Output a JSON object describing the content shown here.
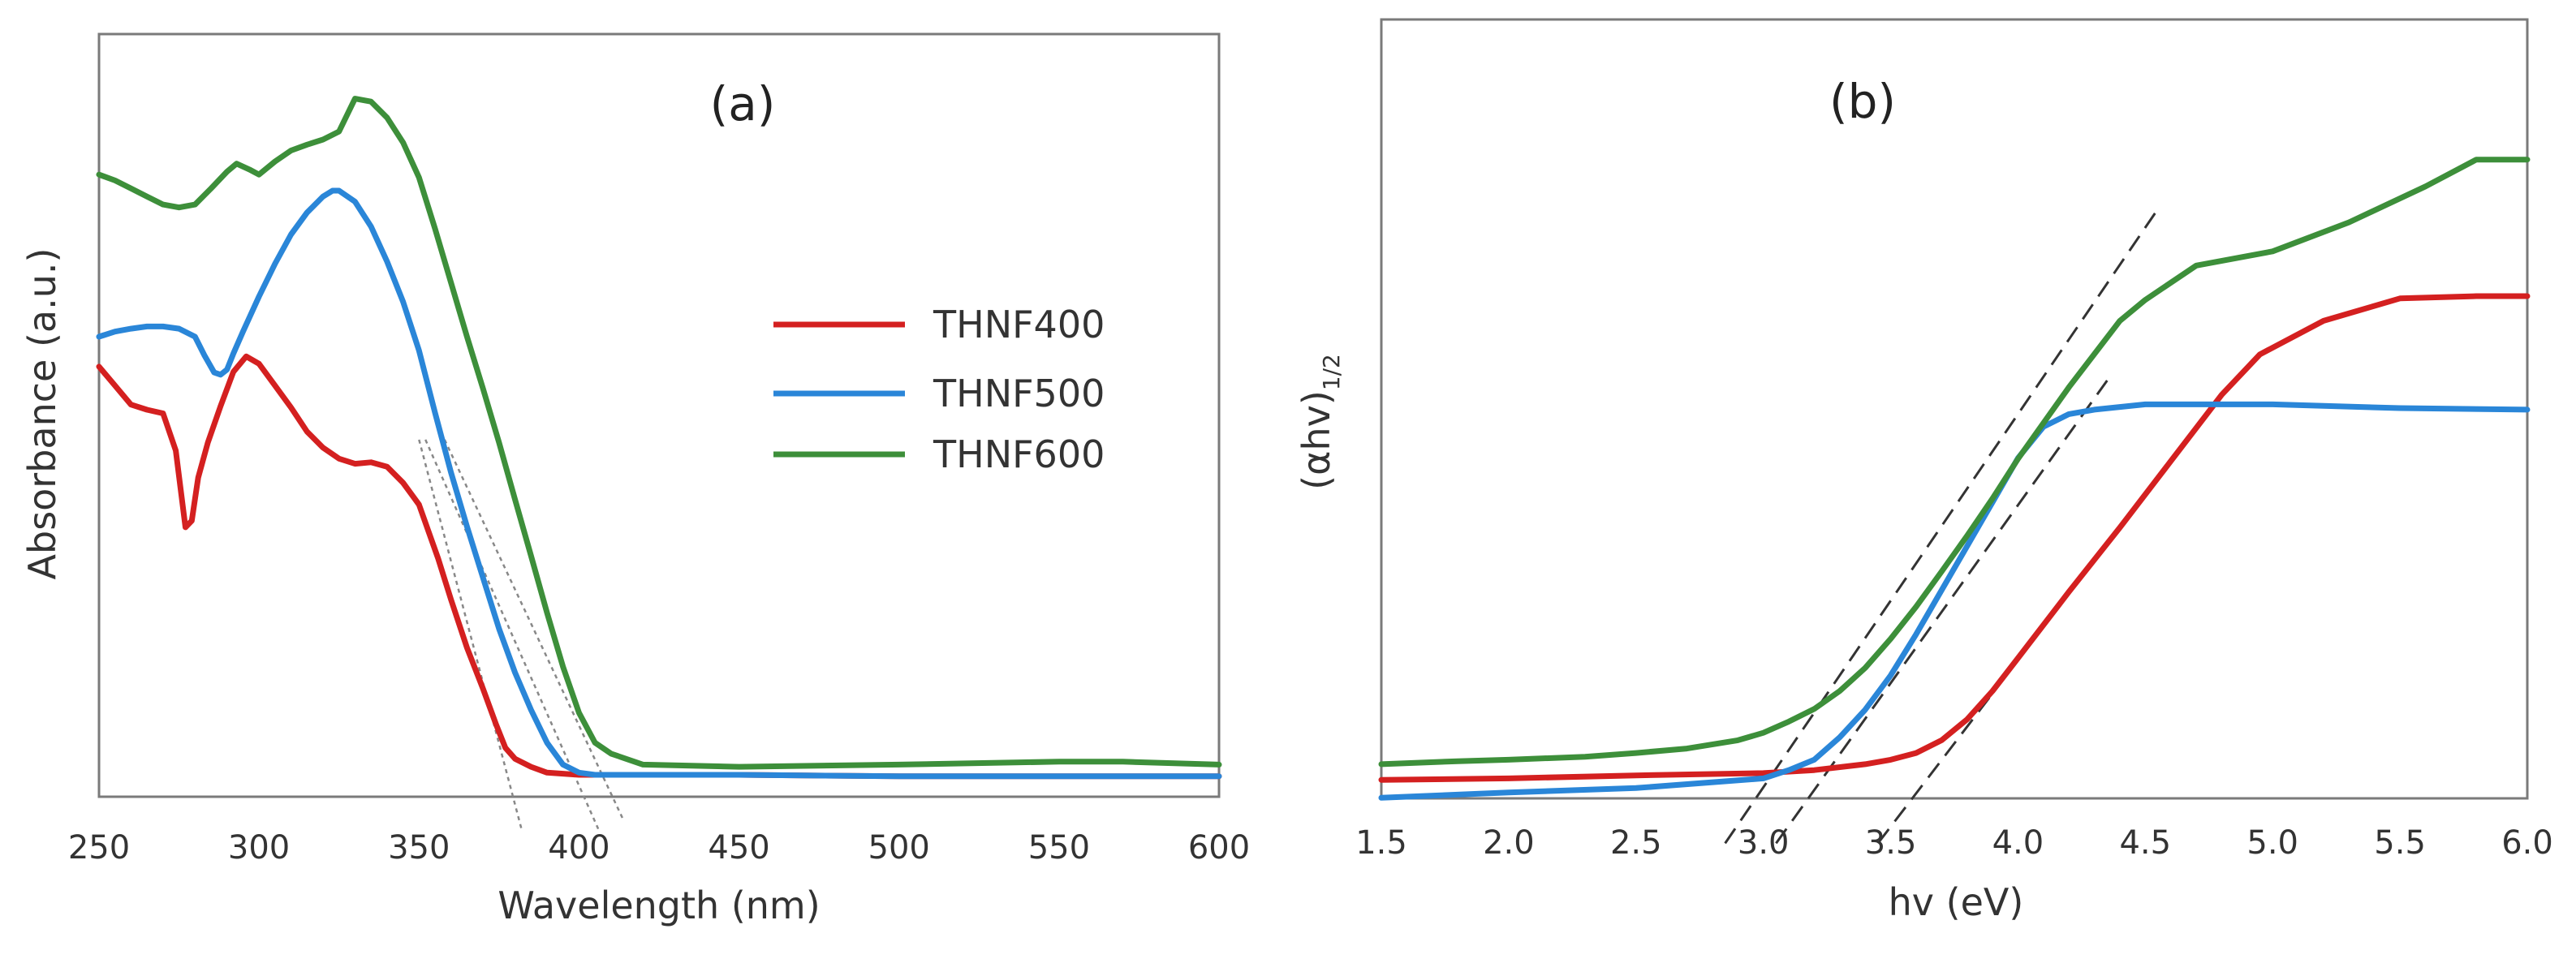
{
  "colors": {
    "THNF400": "#d42020",
    "THNF500": "#2a86d8",
    "THNF600": "#3d8f3a"
  },
  "chart_data": [
    {
      "type": "line",
      "panel_label": "(a)",
      "xlabel": "Wavelength (nm)",
      "ylabel": "Absorbance (a.u.)",
      "xlim": [
        250,
        600
      ],
      "ylim": [
        0,
        1
      ],
      "y_ticks_shown": false,
      "x_ticks": [
        250,
        300,
        350,
        400,
        450,
        500,
        550,
        600
      ],
      "x_tick_labels": [
        "250",
        "300",
        "350",
        "400",
        "450",
        "500",
        "550",
        "600"
      ],
      "legend": {
        "position": "right-center",
        "entries": [
          "THNF400",
          "THNF500",
          "THNF600"
        ]
      },
      "series": [
        {
          "name": "THNF400",
          "color": "#d42020",
          "x": [
            250,
            255,
            260,
            265,
            270,
            274,
            277,
            279,
            281,
            284,
            288,
            292,
            296,
            300,
            305,
            310,
            315,
            320,
            325,
            330,
            335,
            340,
            345,
            350,
            353,
            356,
            360,
            365,
            370,
            374,
            377,
            380,
            385,
            390,
            400,
            410,
            450,
            500,
            550,
            600
          ],
          "y": [
            0.589,
            0.563,
            0.537,
            0.53,
            0.525,
            0.474,
            0.369,
            0.378,
            0.437,
            0.485,
            0.535,
            0.582,
            0.603,
            0.593,
            0.563,
            0.533,
            0.5,
            0.478,
            0.463,
            0.456,
            0.458,
            0.452,
            0.43,
            0.4,
            0.363,
            0.326,
            0.27,
            0.204,
            0.148,
            0.1,
            0.067,
            0.052,
            0.041,
            0.033,
            0.03,
            0.03,
            0.03,
            0.028,
            0.028,
            0.028
          ]
        },
        {
          "name": "THNF500",
          "color": "#2a86d8",
          "x": [
            250,
            255,
            260,
            265,
            270,
            275,
            280,
            283,
            286,
            288,
            290,
            292,
            295,
            300,
            305,
            310,
            315,
            320,
            323,
            325,
            330,
            335,
            340,
            345,
            350,
            355,
            360,
            365,
            370,
            375,
            380,
            385,
            390,
            395,
            400,
            405,
            410,
            420,
            450,
            500,
            550,
            600
          ],
          "y": [
            0.63,
            0.637,
            0.641,
            0.644,
            0.644,
            0.641,
            0.63,
            0.604,
            0.581,
            0.578,
            0.585,
            0.607,
            0.637,
            0.685,
            0.73,
            0.77,
            0.8,
            0.822,
            0.83,
            0.83,
            0.815,
            0.781,
            0.733,
            0.678,
            0.611,
            0.526,
            0.444,
            0.37,
            0.3,
            0.23,
            0.17,
            0.119,
            0.074,
            0.044,
            0.033,
            0.03,
            0.03,
            0.03,
            0.03,
            0.028,
            0.028,
            0.028
          ]
        },
        {
          "name": "THNF600",
          "color": "#3d8f3a",
          "x": [
            250,
            255,
            260,
            265,
            270,
            275,
            280,
            285,
            290,
            293,
            297,
            300,
            305,
            310,
            315,
            320,
            325,
            330,
            335,
            340,
            345,
            350,
            355,
            360,
            365,
            370,
            375,
            380,
            385,
            390,
            395,
            400,
            405,
            410,
            420,
            450,
            500,
            550,
            570,
            600
          ],
          "y": [
            0.852,
            0.844,
            0.833,
            0.822,
            0.811,
            0.807,
            0.811,
            0.833,
            0.856,
            0.867,
            0.859,
            0.852,
            0.87,
            0.885,
            0.893,
            0.9,
            0.911,
            0.956,
            0.952,
            0.93,
            0.896,
            0.848,
            0.778,
            0.704,
            0.63,
            0.559,
            0.485,
            0.407,
            0.33,
            0.252,
            0.178,
            0.115,
            0.074,
            0.059,
            0.044,
            0.041,
            0.044,
            0.048,
            0.048,
            0.044
          ]
        }
      ],
      "fit_lines": [
        {
          "x": [
            350,
            382
          ],
          "y": [
            0.489,
            -0.044
          ]
        },
        {
          "x": [
            352,
            406
          ],
          "y": [
            0.489,
            -0.044
          ]
        },
        {
          "x": [
            358,
            414
          ],
          "y": [
            0.489,
            -0.033
          ]
        }
      ]
    },
    {
      "type": "line",
      "panel_label": "(b)",
      "xlabel": "hv (eV)",
      "ylabel": "(αhv)",
      "ylabel_subscript": "1/2",
      "xlim": [
        1.5,
        6.0
      ],
      "ylim": [
        0,
        1
      ],
      "y_ticks_shown": false,
      "x_ticks": [
        1.5,
        2.0,
        2.5,
        3.0,
        3.5,
        4.0,
        4.5,
        5.0,
        5.5,
        6.0
      ],
      "x_tick_labels": [
        "1.5",
        "2.0",
        "2.5",
        "3.0",
        "3.5",
        "4.0",
        "4.5",
        "5.0",
        "5.5",
        "6.0"
      ],
      "series": [
        {
          "name": "THNF400",
          "color": "#d42020",
          "x": [
            1.5,
            2.0,
            2.5,
            3.0,
            3.2,
            3.4,
            3.5,
            3.6,
            3.7,
            3.8,
            3.9,
            4.0,
            4.2,
            4.4,
            4.6,
            4.8,
            4.95,
            5.2,
            5.5,
            5.8,
            6.0
          ],
          "y": [
            0.015,
            0.017,
            0.021,
            0.024,
            0.028,
            0.036,
            0.042,
            0.051,
            0.068,
            0.096,
            0.134,
            0.178,
            0.267,
            0.353,
            0.442,
            0.531,
            0.585,
            0.63,
            0.66,
            0.663,
            0.663
          ]
        },
        {
          "name": "THNF500",
          "color": "#2a86d8",
          "x": [
            1.5,
            2.0,
            2.5,
            3.0,
            3.1,
            3.2,
            3.3,
            3.4,
            3.5,
            3.6,
            3.7,
            3.8,
            3.9,
            4.0,
            4.1,
            4.2,
            4.3,
            4.5,
            5.0,
            5.5,
            6.0
          ],
          "y": [
            -0.009,
            -0.002,
            0.004,
            0.017,
            0.028,
            0.042,
            0.072,
            0.109,
            0.155,
            0.21,
            0.269,
            0.328,
            0.387,
            0.446,
            0.488,
            0.505,
            0.511,
            0.518,
            0.518,
            0.513,
            0.511
          ]
        },
        {
          "name": "THNF600",
          "color": "#3d8f3a",
          "x": [
            1.5,
            1.8,
            2.0,
            2.3,
            2.5,
            2.7,
            2.9,
            3.0,
            3.1,
            3.2,
            3.3,
            3.4,
            3.5,
            3.6,
            3.7,
            3.8,
            3.9,
            4.0,
            4.2,
            4.4,
            4.5,
            4.7,
            5.0,
            5.3,
            5.6,
            5.8,
            6.0
          ],
          "y": [
            0.036,
            0.04,
            0.042,
            0.046,
            0.051,
            0.057,
            0.068,
            0.078,
            0.093,
            0.11,
            0.134,
            0.165,
            0.204,
            0.247,
            0.294,
            0.342,
            0.392,
            0.445,
            0.541,
            0.63,
            0.658,
            0.704,
            0.723,
            0.762,
            0.81,
            0.846,
            0.846
          ]
        }
      ],
      "fit_lines": [
        {
          "x": [
            2.85,
            4.55
          ],
          "y": [
            -0.07,
            0.78
          ]
        },
        {
          "x": [
            3.05,
            4.35
          ],
          "y": [
            -0.07,
            0.55
          ]
        },
        {
          "x": [
            3.45,
            4.75
          ],
          "y": [
            -0.07,
            0.51
          ]
        }
      ]
    }
  ]
}
